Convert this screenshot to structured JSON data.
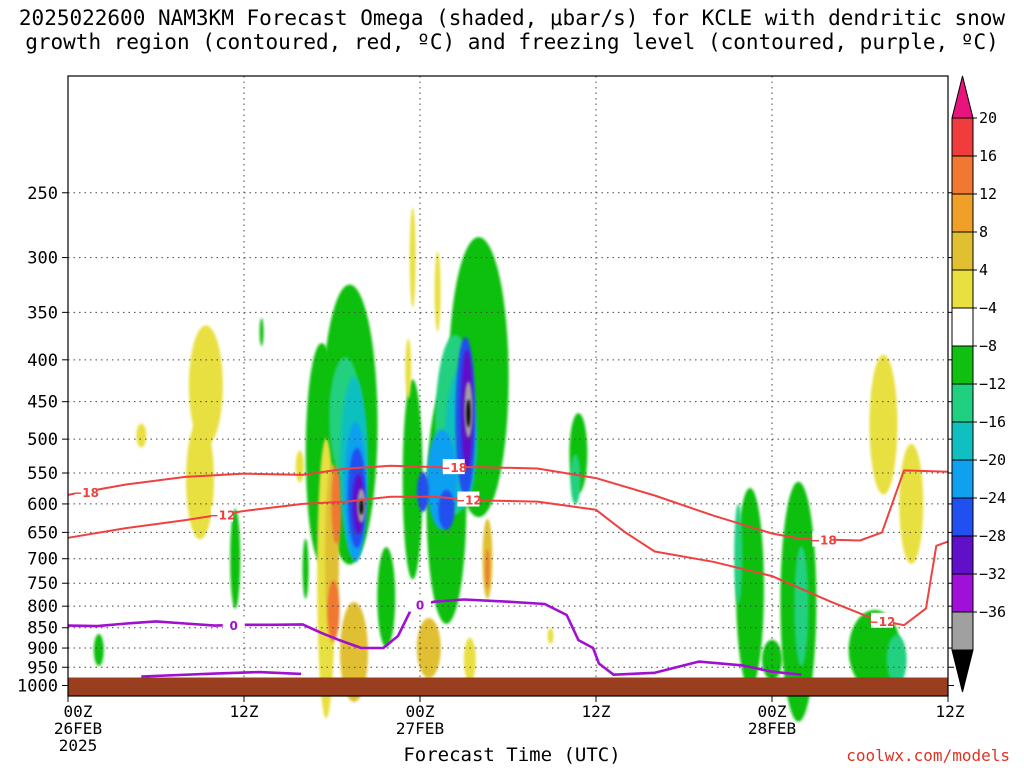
{
  "title": {
    "line1": "2025022600 NAM3KM Forecast Omega (shaded, μbar/s) for KCLE with dendritic snow",
    "line2": "growth region (contoured, red, ºC) and freezing level (contoured, purple, ºC)"
  },
  "xlabel": "Forecast Time (UTC)",
  "credit": "coolwx.com/models",
  "chart_data": {
    "type": "heatmap",
    "xlabel": "Forecast Time (UTC)",
    "ylabel": "",
    "x_unit": "forecast hour",
    "xlim": [
      0,
      60
    ],
    "ylim_hpa": [
      1030,
      180
    ],
    "y_scale": "log-pressure",
    "grid": true,
    "x_ticks": [
      {
        "hour": 0,
        "lines": [
          "00Z",
          "26FEB",
          "2025"
        ]
      },
      {
        "hour": 12,
        "lines": [
          "12Z"
        ]
      },
      {
        "hour": 24,
        "lines": [
          "00Z",
          "27FEB"
        ]
      },
      {
        "hour": 36,
        "lines": [
          "12Z"
        ]
      },
      {
        "hour": 48,
        "lines": [
          "00Z",
          "28FEB"
        ]
      },
      {
        "hour": 60,
        "lines": [
          "12Z"
        ]
      }
    ],
    "y_ticks": [
      250,
      300,
      350,
      400,
      450,
      500,
      550,
      600,
      650,
      700,
      750,
      800,
      850,
      900,
      950,
      1000
    ],
    "colorbar": {
      "levels": [
        -36,
        -32,
        -28,
        -24,
        -20,
        -16,
        -12,
        -8,
        -4,
        4,
        8,
        12,
        16,
        20
      ],
      "labels": [
        "20",
        "16",
        "12",
        "8",
        "4",
        "−4",
        "−8",
        "−12",
        "−16",
        "−20",
        "−24",
        "−28",
        "−32",
        "−36"
      ],
      "colors_top_to_bottom": [
        "#e8137c",
        "#f03c3c",
        "#f07830",
        "#f0a028",
        "#e0c030",
        "#e8e040",
        "#ffffff",
        "#10c010",
        "#20d080",
        "#10c0c0",
        "#10a0f0",
        "#2050f0",
        "#6010c8",
        "#a010d8",
        "#a0a0a0",
        "#000000"
      ]
    },
    "omega_blobs": [
      {
        "hour": 9.2,
        "p": 470,
        "value": 6
      },
      {
        "hour": 5.0,
        "p": 490,
        "value": 5
      },
      {
        "hour": 11.4,
        "p": 720,
        "value": -8
      },
      {
        "hour": 2.1,
        "p": 910,
        "value": -8
      },
      {
        "hour": 16.5,
        "p": 450,
        "value": -10
      },
      {
        "hour": 18.8,
        "p": 590,
        "value": -28
      },
      {
        "hour": 18.8,
        "p": 600,
        "value": -33
      },
      {
        "hour": 16.8,
        "p": 720,
        "value": 12
      },
      {
        "hour": 18.0,
        "p": 880,
        "value": 8
      },
      {
        "hour": 24.0,
        "p": 450,
        "value": -12
      },
      {
        "hour": 27.3,
        "p": 460,
        "value": -30
      },
      {
        "hour": 27.3,
        "p": 460,
        "value": -36
      },
      {
        "hour": 28.5,
        "p": 700,
        "value": 8
      },
      {
        "hour": 34.8,
        "p": 520,
        "value": -8
      },
      {
        "hour": 46.5,
        "p": 820,
        "value": -8
      },
      {
        "hour": 50.0,
        "p": 850,
        "value": -8
      },
      {
        "hour": 55.5,
        "p": 500,
        "value": 5
      },
      {
        "hour": 25.5,
        "p": 900,
        "value": 4
      }
    ],
    "isotherms": [
      {
        "name": "-18",
        "color": "#f04040",
        "label_hours": [
          1.2,
          26.3,
          51.5
        ],
        "hours": [
          0,
          4,
          8,
          12,
          16,
          19,
          22,
          25,
          28,
          32,
          36,
          40,
          44,
          48,
          50,
          54,
          55.5,
          57,
          60
        ],
        "pressure": [
          585,
          568,
          556,
          551,
          553,
          543,
          539,
          541,
          541,
          543,
          558,
          586,
          620,
          652,
          662,
          665,
          650,
          546,
          548
        ]
      },
      {
        "name": "-12",
        "color": "#f04040",
        "label_hours": [
          10.5,
          27.3,
          55.5
        ],
        "hours": [
          0,
          4,
          8,
          12,
          16,
          19,
          22,
          25,
          28,
          32,
          36,
          38,
          40,
          44,
          48,
          52,
          55,
          57,
          58.5,
          59.2,
          60
        ],
        "pressure": [
          660,
          642,
          628,
          612,
          600,
          596,
          588,
          588,
          594,
          596,
          610,
          650,
          686,
          706,
          735,
          790,
          830,
          844,
          805,
          675,
          667
        ]
      },
      {
        "name": "0",
        "color": "#a010d0",
        "label_hours": [
          11.3,
          24.0
        ],
        "hours": [
          0,
          2,
          4,
          6,
          8,
          10,
          12,
          14,
          16,
          17.3,
          18.5,
          20,
          21.5,
          22.5,
          23.5,
          25,
          27,
          30,
          32.5,
          34.0,
          34.8,
          35.8,
          36.2,
          37.2,
          40,
          43,
          46,
          48,
          50
        ],
        "pressure": [
          845,
          846,
          840,
          835,
          840,
          845,
          843,
          843,
          842,
          863,
          880,
          900,
          900,
          870,
          800,
          790,
          785,
          790,
          795,
          820,
          880,
          900,
          940,
          970,
          965,
          935,
          945,
          962,
          970
        ]
      }
    ],
    "freezing_level_surface_segment": {
      "hours": [
        5,
        10,
        13,
        15.9
      ],
      "pressure": [
        975,
        967,
        963,
        968
      ]
    }
  }
}
